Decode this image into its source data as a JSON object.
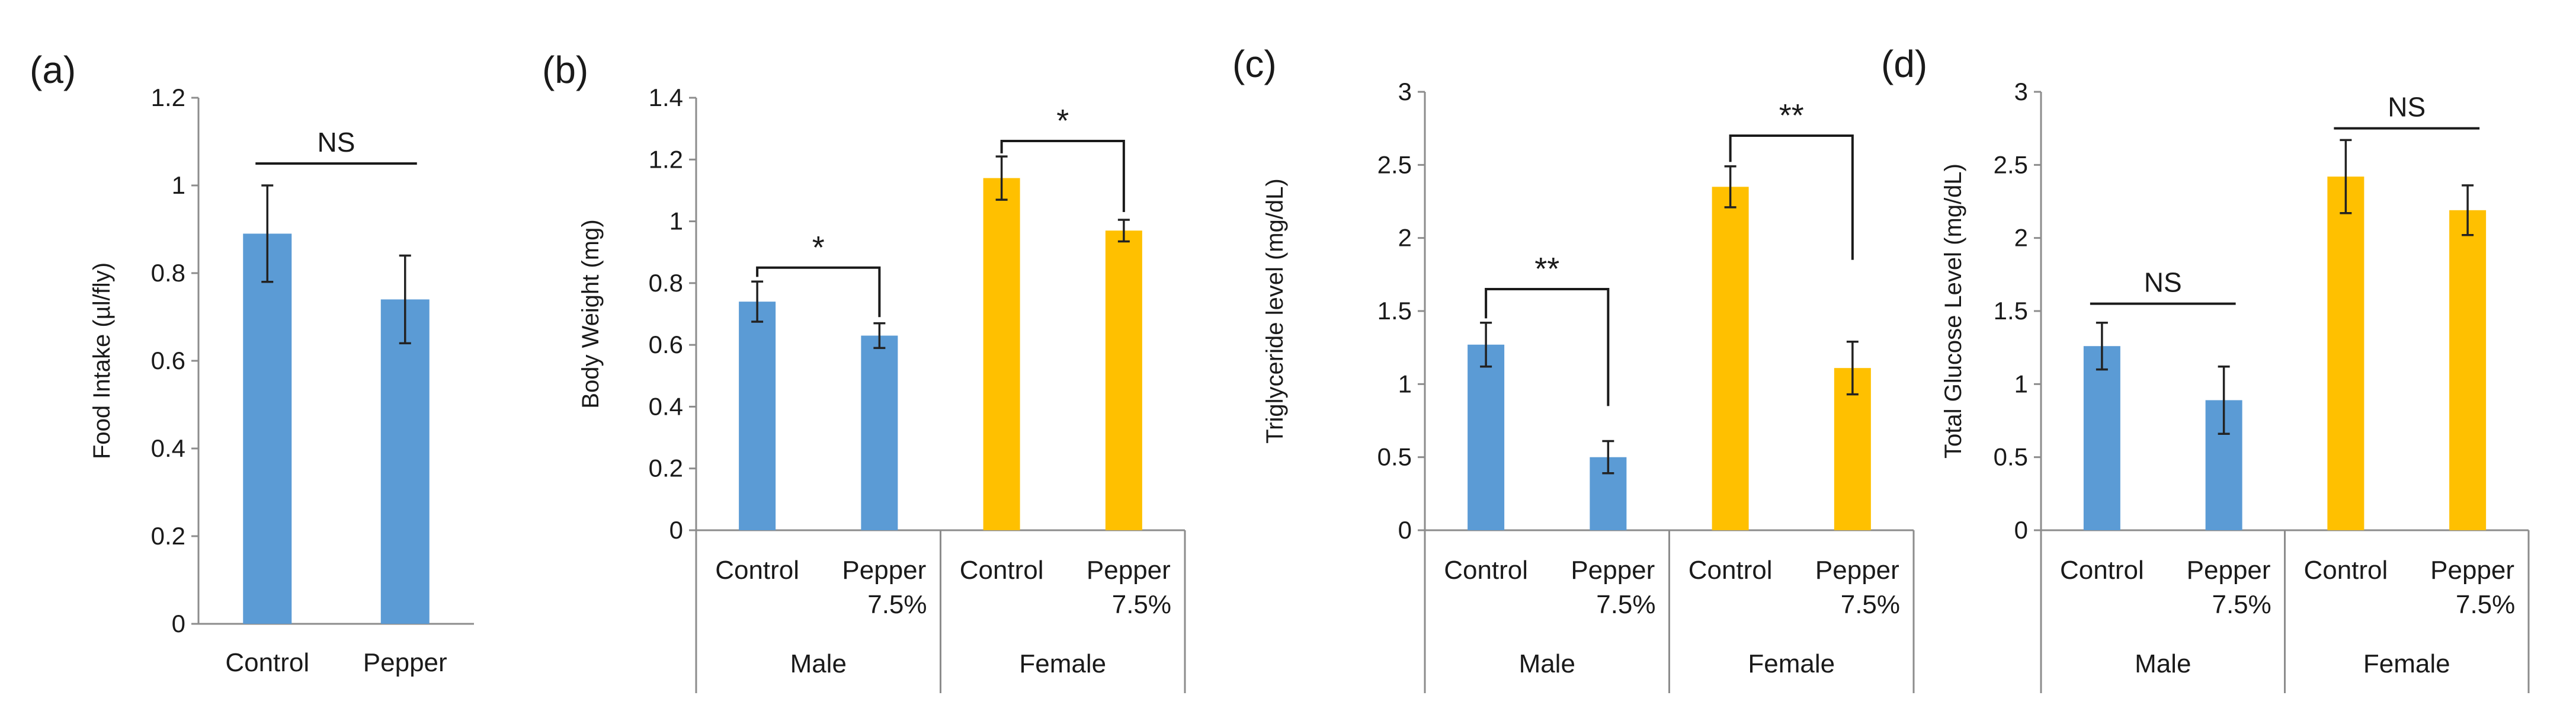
{
  "chart_data": [
    {
      "type": "bar",
      "panel": "(a)",
      "ylabel": "Food Intake (µl/fly)",
      "ylim": [
        0,
        1.2
      ],
      "ytick_step": 0.2,
      "yticks": [
        "0",
        "0.2",
        "0.4",
        "0.6",
        "0.8",
        "1",
        "1.2"
      ],
      "categories": [
        "Control",
        "Pepper"
      ],
      "values": [
        0.89,
        0.74
      ],
      "errors": [
        0.11,
        0.1
      ],
      "colors": [
        "#5b9bd5",
        "#5b9bd5"
      ],
      "groups": [],
      "annotations": [
        {
          "type": "line",
          "from": 0,
          "to": 1,
          "y": 1.05,
          "label": "NS"
        }
      ]
    },
    {
      "type": "bar",
      "panel": "(b)",
      "ylabel": "Body Weight (mg)",
      "ylim": [
        0,
        1.4
      ],
      "ytick_step": 0.2,
      "yticks": [
        "0",
        "0.2",
        "0.4",
        "0.6",
        "0.8",
        "1",
        "1.2",
        "1.4"
      ],
      "categories": [
        "Control",
        "Pepper 7.5%",
        "Control",
        "Pepper 7.5%"
      ],
      "values": [
        0.74,
        0.63,
        1.14,
        0.97
      ],
      "errors": [
        0.065,
        0.04,
        0.07,
        0.035
      ],
      "colors": [
        "#5b9bd5",
        "#5b9bd5",
        "#ffc000",
        "#ffc000"
      ],
      "groups": [
        {
          "name": "Male",
          "span": [
            0,
            1
          ]
        },
        {
          "name": "Female",
          "span": [
            2,
            3
          ]
        }
      ],
      "annotations": [
        {
          "type": "bracket",
          "from": 0,
          "to": 1,
          "y": 0.85,
          "drop_to": [
            0.82,
            0.69
          ],
          "label": "*"
        },
        {
          "type": "bracket",
          "from": 2,
          "to": 3,
          "y": 1.26,
          "drop_to": [
            1.22,
            1.03
          ],
          "label": "*"
        }
      ]
    },
    {
      "type": "bar",
      "panel": "(c)",
      "ylabel": "Triglyceride level (mg/dL)",
      "ylim": [
        0,
        3
      ],
      "ytick_step": 0.5,
      "yticks": [
        "0",
        "0.5",
        "1",
        "1.5",
        "2",
        "2.5",
        "3"
      ],
      "categories": [
        "Control",
        "Pepper 7.5%",
        "Control",
        "Pepper 7.5%"
      ],
      "values": [
        1.27,
        0.5,
        2.35,
        1.11
      ],
      "errors": [
        0.15,
        0.11,
        0.14,
        0.18
      ],
      "colors": [
        "#5b9bd5",
        "#5b9bd5",
        "#ffc000",
        "#ffc000"
      ],
      "groups": [
        {
          "name": "Male",
          "span": [
            0,
            1
          ]
        },
        {
          "name": "Female",
          "span": [
            2,
            3
          ]
        }
      ],
      "annotations": [
        {
          "type": "bracket",
          "from": 0,
          "to": 1,
          "y": 1.65,
          "drop_to": [
            1.45,
            0.85
          ],
          "label": "**"
        },
        {
          "type": "bracket",
          "from": 2,
          "to": 3,
          "y": 2.7,
          "drop_to": [
            2.52,
            1.85
          ],
          "label": "**"
        }
      ]
    },
    {
      "type": "bar",
      "panel": "(d)",
      "ylabel": "Total Glucose Level (mg/dL)",
      "ylim": [
        0,
        3
      ],
      "ytick_step": 0.5,
      "yticks": [
        "0",
        "0.5",
        "1",
        "1.5",
        "2",
        "2.5",
        "3"
      ],
      "categories": [
        "Control",
        "Pepper 7.5%",
        "Control",
        "Pepper 7.5%"
      ],
      "values": [
        1.26,
        0.89,
        2.42,
        2.19
      ],
      "errors": [
        0.16,
        0.23,
        0.25,
        0.17
      ],
      "colors": [
        "#5b9bd5",
        "#5b9bd5",
        "#ffc000",
        "#ffc000"
      ],
      "groups": [
        {
          "name": "Male",
          "span": [
            0,
            1
          ]
        },
        {
          "name": "Female",
          "span": [
            2,
            3
          ]
        }
      ],
      "annotations": [
        {
          "type": "line",
          "from": 0,
          "to": 1,
          "y": 1.55,
          "label": "NS"
        },
        {
          "type": "line",
          "from": 2,
          "to": 3,
          "y": 2.75,
          "label": "NS"
        }
      ]
    }
  ]
}
